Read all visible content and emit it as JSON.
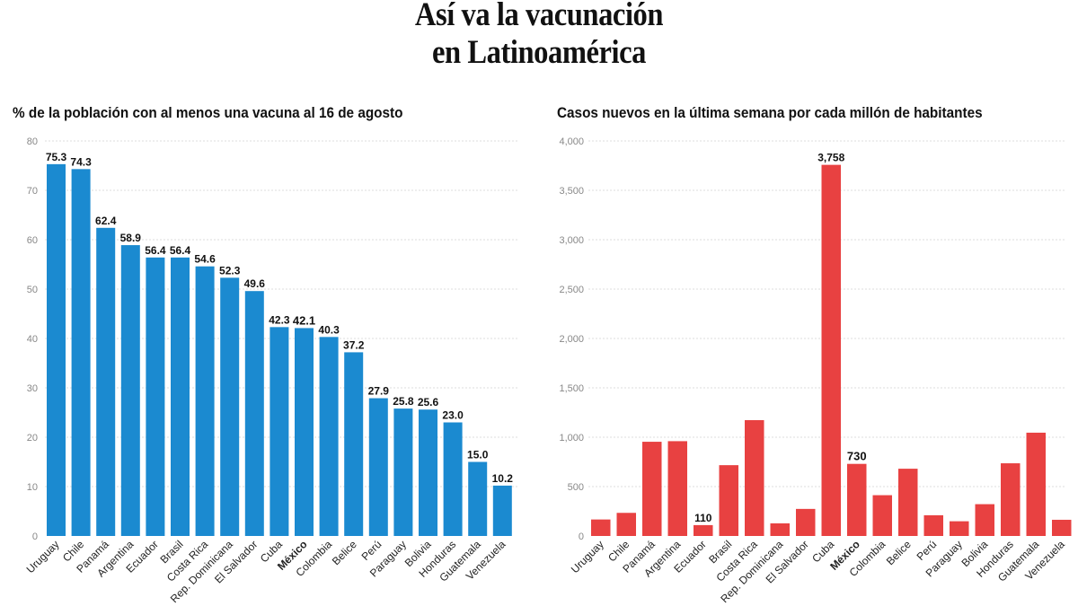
{
  "title_line1": "Así va la vacunación",
  "title_line2": "en Latinoamérica",
  "chart_data": [
    {
      "type": "bar",
      "title": "% de la población con al menos una vacuna al 16 de agosto",
      "categories": [
        "Uruguay",
        "Chile",
        "Panamá",
        "Argentina",
        "Ecuador",
        "Brasil",
        "Costa Rica",
        "Rep. Dominicana",
        "El Salvador",
        "Cuba",
        "México",
        "Colombia",
        "Belice",
        "Perú",
        "Paraguay",
        "Bolivia",
        "Honduras",
        "Guatemala",
        "Venezuela"
      ],
      "values": [
        75.3,
        74.3,
        62.4,
        58.9,
        56.4,
        56.4,
        54.6,
        52.3,
        49.6,
        42.3,
        42.1,
        40.3,
        37.2,
        27.9,
        25.8,
        25.6,
        23.0,
        15.0,
        10.2
      ],
      "data_labels": [
        "75.3",
        "74.3",
        "62.4",
        "58.9",
        "56.4",
        "56.4",
        "54.6",
        "52.3",
        "49.6",
        "42.3",
        "42.1",
        "40.3",
        "37.2",
        "27.9",
        "25.8",
        "25.6",
        "23.0",
        "15.0",
        "10.2"
      ],
      "highlight": "México",
      "yticks": [
        "0",
        "10",
        "20",
        "30",
        "40",
        "50",
        "60",
        "70",
        "80"
      ],
      "ylim": [
        0,
        80
      ],
      "color": "#1b8ad0",
      "grid": true
    },
    {
      "type": "bar",
      "title": "Casos nuevos en la última semana por cada millón de habitantes",
      "categories": [
        "Uruguay",
        "Chile",
        "Panamá",
        "Argentina",
        "Ecuador",
        "Brasil",
        "Costa Rica",
        "Rep. Dominicana",
        "El Salvador",
        "Cuba",
        "México",
        "Colombia",
        "Belice",
        "Perú",
        "Paraguay",
        "Bolivia",
        "Honduras",
        "Guatemala",
        "Venezuela"
      ],
      "values": [
        167,
        234,
        954,
        960,
        110,
        717,
        1173,
        128,
        274,
        3758,
        730,
        413,
        681,
        210,
        149,
        322,
        736,
        1046,
        164
      ],
      "data_labels": [
        "",
        "",
        "",
        "",
        "110",
        "",
        "",
        "",
        "",
        "3,758",
        "730",
        "",
        "",
        "",
        "",
        "",
        "",
        "",
        ""
      ],
      "highlight": "México",
      "yticks": [
        "0",
        "500",
        "1,000",
        "1,500",
        "2,000",
        "2,500",
        "3,000",
        "3,500",
        "4,000"
      ],
      "ylim": [
        0,
        4000
      ],
      "color": "#e84141",
      "grid": true
    }
  ]
}
